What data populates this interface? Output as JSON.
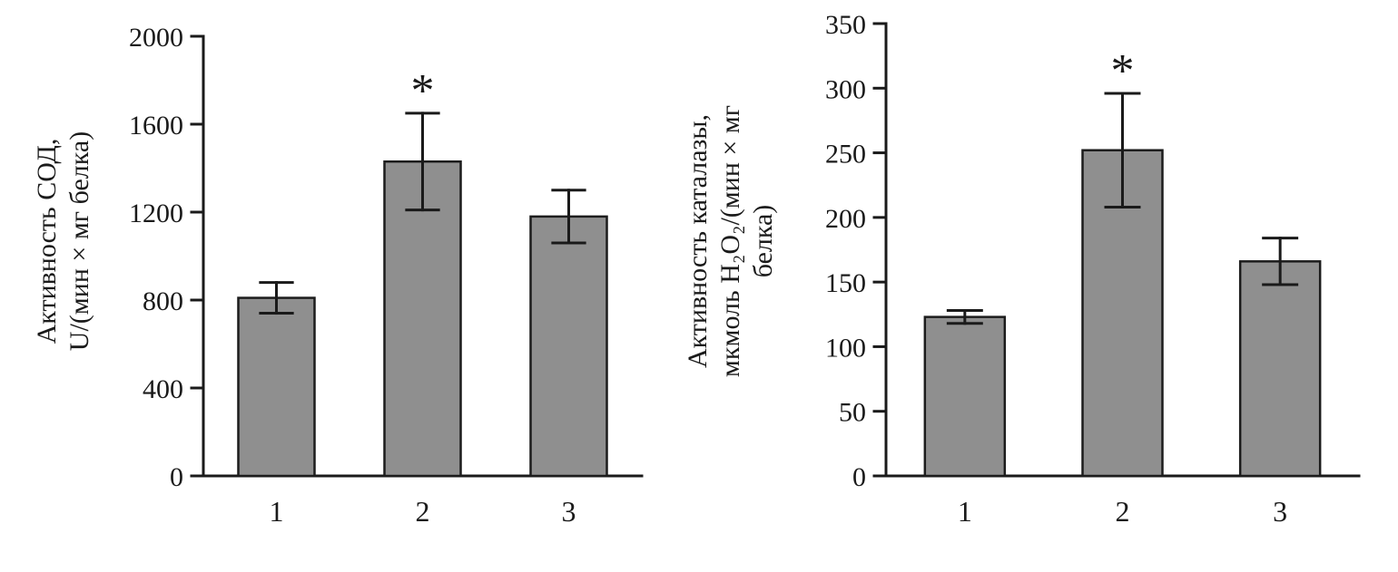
{
  "chart_data": [
    {
      "type": "bar",
      "title": "",
      "ylabel_lines": [
        "Активность СОД,",
        "U/(мин × мг белка)"
      ],
      "xlabel": "",
      "categories": [
        "1",
        "2",
        "3"
      ],
      "values": [
        810,
        1430,
        1180
      ],
      "errors": [
        70,
        220,
        120
      ],
      "annotations": [
        "",
        "*",
        ""
      ],
      "ylim": [
        0,
        2000
      ],
      "yticks": [
        0,
        400,
        800,
        1200,
        1600,
        2000
      ],
      "grid": false,
      "legend": false,
      "bar_color": "#8f8f8f",
      "bar_edge_color": "#1c1c1c"
    },
    {
      "type": "bar",
      "title": "",
      "ylabel_lines": [
        "Активность каталазы,",
        "мкмоль H₂O₂/(мин × мг",
        "белка)"
      ],
      "xlabel": "",
      "categories": [
        "1",
        "2",
        "3"
      ],
      "values": [
        123,
        252,
        166
      ],
      "errors": [
        5,
        44,
        18
      ],
      "annotations": [
        "",
        "*",
        ""
      ],
      "ylim": [
        0,
        350
      ],
      "yticks": [
        0,
        50,
        100,
        150,
        200,
        250,
        300,
        350
      ],
      "grid": false,
      "legend": false,
      "bar_color": "#8f8f8f",
      "bar_edge_color": "#1c1c1c"
    }
  ]
}
